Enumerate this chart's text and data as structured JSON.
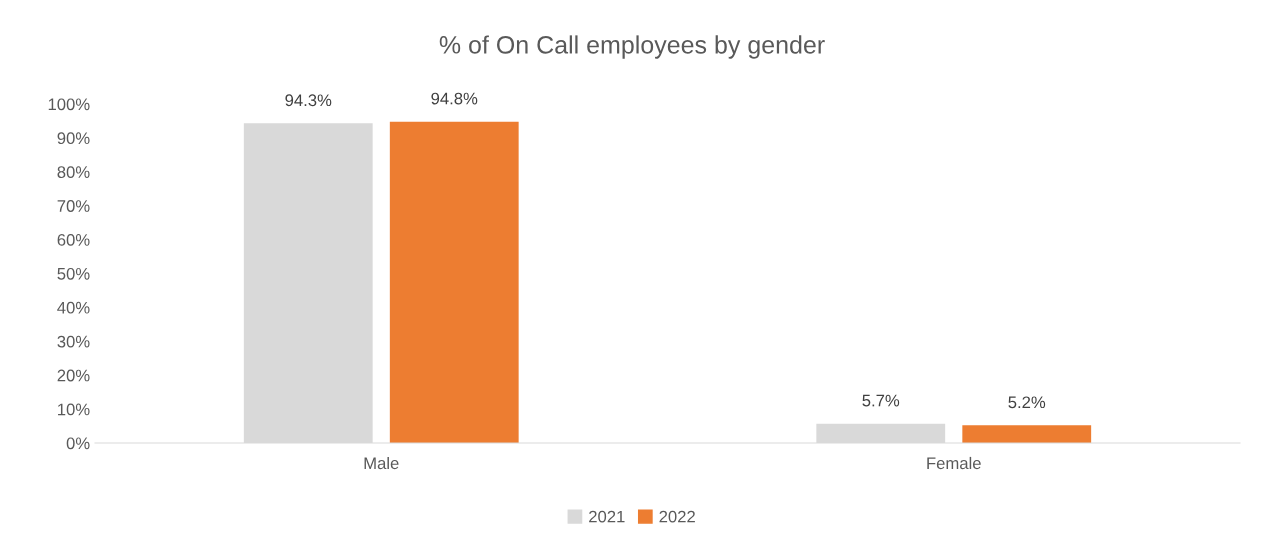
{
  "chart_data": {
    "type": "bar",
    "title": "% of On Call employees by gender",
    "categories": [
      "Male",
      "Female"
    ],
    "series": [
      {
        "name": "2021",
        "color": "#d9d9d9",
        "values": [
          94.3,
          5.7
        ],
        "value_labels": [
          "94.3%",
          "5.7%"
        ]
      },
      {
        "name": "2022",
        "color": "#ed7d31",
        "values": [
          94.8,
          5.2
        ],
        "value_labels": [
          "94.8%",
          "5.2%"
        ]
      }
    ],
    "ylim": [
      0,
      100
    ],
    "yticks": [
      {
        "value": 0,
        "label": "0%"
      },
      {
        "value": 10,
        "label": "10%"
      },
      {
        "value": 20,
        "label": "20%"
      },
      {
        "value": 30,
        "label": "30%"
      },
      {
        "value": 40,
        "label": "40%"
      },
      {
        "value": 50,
        "label": "50%"
      },
      {
        "value": 60,
        "label": "60%"
      },
      {
        "value": 70,
        "label": "70%"
      },
      {
        "value": 80,
        "label": "80%"
      },
      {
        "value": 90,
        "label": "90%"
      },
      {
        "value": 100,
        "label": "100%"
      }
    ],
    "grid": false,
    "legend": "bottom"
  }
}
